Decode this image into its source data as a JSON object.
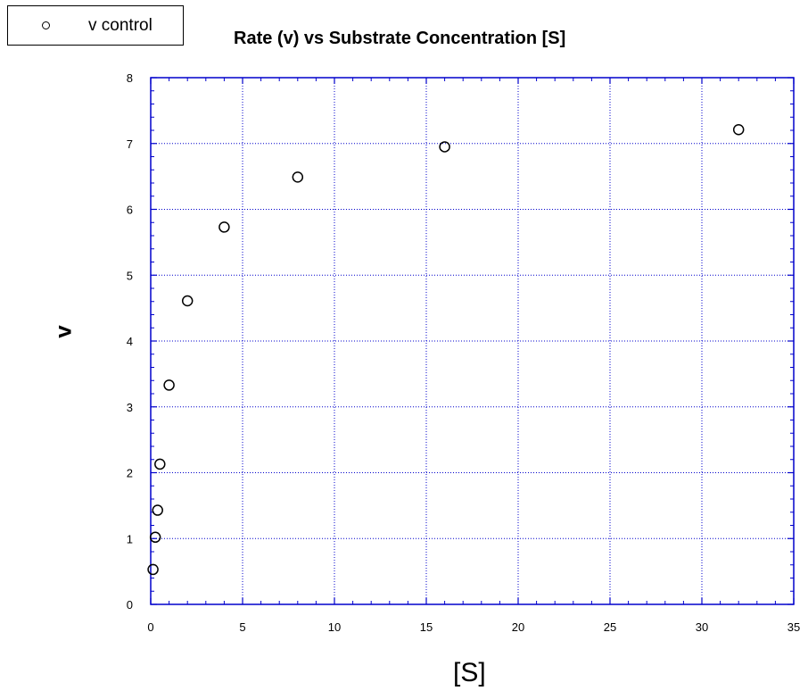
{
  "chart_data": {
    "type": "scatter",
    "title": "Rate (v) vs Substrate Concentration [S]",
    "xlabel": "[S]",
    "ylabel": "v",
    "xlim": [
      0,
      35
    ],
    "ylim": [
      0,
      8
    ],
    "xticks": [
      0,
      5,
      10,
      15,
      20,
      25,
      30,
      35
    ],
    "yticks": [
      0,
      1,
      2,
      3,
      4,
      5,
      6,
      7,
      8
    ],
    "grid": true,
    "legend_position": "top-left",
    "series": [
      {
        "name": "v control",
        "marker": "open-circle",
        "x": [
          0.125,
          0.25,
          0.375,
          0.5,
          1,
          2,
          4,
          8,
          16,
          32
        ],
        "y": [
          0.53,
          1.02,
          1.43,
          2.13,
          3.33,
          4.61,
          5.73,
          6.49,
          6.95,
          7.21
        ]
      }
    ],
    "colors": {
      "axis": "#0000cc",
      "grid": "#0000cc",
      "marker": "#000000"
    }
  }
}
